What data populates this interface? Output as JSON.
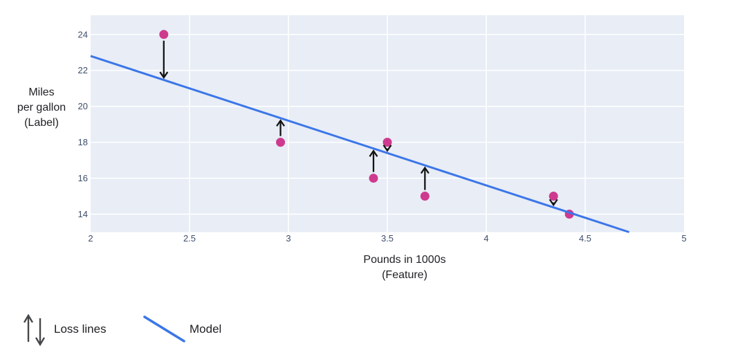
{
  "chart_data": {
    "type": "scatter",
    "title": "",
    "xlabel": "Pounds in 1000s\n(Feature)",
    "ylabel": "Miles\nper gallon\n(Label)",
    "xlim": [
      2,
      5
    ],
    "ylim": [
      13,
      25.07
    ],
    "x_ticks": [
      2,
      2.5,
      3,
      3.5,
      4,
      4.5,
      5
    ],
    "y_ticks": [
      14,
      16,
      18,
      20,
      22,
      24
    ],
    "grid": true,
    "legend_position": "bottom-left",
    "points": [
      {
        "x": 2.37,
        "y": 24
      },
      {
        "x": 2.96,
        "y": 18
      },
      {
        "x": 3.43,
        "y": 16
      },
      {
        "x": 3.5,
        "y": 18
      },
      {
        "x": 3.69,
        "y": 15
      },
      {
        "x": 4.34,
        "y": 15
      },
      {
        "x": 4.42,
        "y": 14
      }
    ],
    "model": {
      "slope": -3.6,
      "intercept": 30
    },
    "loss_lines": "vertical arrows drawn from each data point to the model line"
  },
  "legend": {
    "loss_label": "Loss lines",
    "model_label": "Model"
  },
  "colors": {
    "model_line": "#3b76e8",
    "point": "#ce3a8e",
    "loss_arrow": "#141414",
    "legend_arrow": "#454749",
    "plot_background": "#e8edf6",
    "gridline": "#ffffff",
    "tick_label": "#3e4e6b",
    "axis_title": "#202124"
  }
}
